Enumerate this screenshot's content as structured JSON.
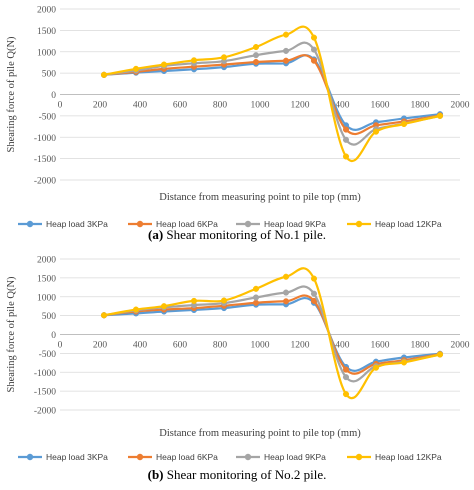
{
  "chart_data": [
    {
      "type": "line",
      "caption_letter": "(a)",
      "caption_text": " Shear monitoring of No.1 pile.",
      "xlabel": "Distance from measuring point to pile top  (mm)",
      "ylabel": "Shearing force of pile Q(N)",
      "xlim": [
        0,
        2000
      ],
      "ylim": [
        -2000,
        2000
      ],
      "xticks": [
        "0",
        "200",
        "400",
        "600",
        "800",
        "1000",
        "1200",
        "1400",
        "1600",
        "1800",
        "2000"
      ],
      "yticks": [
        "-2000",
        "-1500",
        "-1000",
        "-500",
        "0",
        "500",
        "1000",
        "1500",
        "2000"
      ],
      "x": [
        220,
        380,
        520,
        670,
        820,
        980,
        1130,
        1270,
        1430,
        1580,
        1720,
        1900
      ],
      "legend_position": "bottom",
      "series": [
        {
          "name": "Heap load 3KPa",
          "color": "#5b9bd5",
          "values": [
            460,
            510,
            550,
            590,
            640,
            720,
            730,
            820,
            -720,
            -650,
            -560,
            -460
          ]
        },
        {
          "name": "Heap load 6KPa",
          "color": "#ed7d31",
          "values": [
            460,
            530,
            600,
            650,
            700,
            760,
            790,
            790,
            -820,
            -720,
            -630,
            -490
          ]
        },
        {
          "name": "Heap load 9KPa",
          "color": "#a5a5a5",
          "values": [
            460,
            560,
            670,
            730,
            780,
            920,
            1020,
            1050,
            -1060,
            -810,
            -680,
            -500
          ]
        },
        {
          "name": "Heap load 12KPa",
          "color": "#ffc000",
          "values": [
            460,
            600,
            700,
            800,
            870,
            1110,
            1400,
            1330,
            -1450,
            -870,
            -690,
            -500
          ]
        }
      ]
    },
    {
      "type": "line",
      "caption_letter": "(b)",
      "caption_text": " Shear monitoring of No.2 pile.",
      "xlabel": "Distance from measuring point to pile top  (mm)",
      "ylabel": "Shearing force of pile Q(N)",
      "xlim": [
        0,
        2000
      ],
      "ylim": [
        -2000,
        2000
      ],
      "xticks": [
        "0",
        "200",
        "400",
        "600",
        "800",
        "1000",
        "1200",
        "1400",
        "1600",
        "1800",
        "2000"
      ],
      "yticks": [
        "-2000",
        "-1500",
        "-1000",
        "-500",
        "0",
        "500",
        "1000",
        "1500",
        "2000"
      ],
      "x": [
        220,
        380,
        520,
        670,
        820,
        980,
        1130,
        1270,
        1430,
        1580,
        1720,
        1900
      ],
      "legend_position": "bottom",
      "series": [
        {
          "name": "Heap load 3KPa",
          "color": "#5b9bd5",
          "values": [
            510,
            560,
            610,
            650,
            700,
            790,
            800,
            840,
            -860,
            -720,
            -610,
            -510
          ]
        },
        {
          "name": "Heap load 6KPa",
          "color": "#ed7d31",
          "values": [
            510,
            610,
            660,
            700,
            760,
            840,
            880,
            890,
            -930,
            -780,
            -680,
            -520
          ]
        },
        {
          "name": "Heap load 9KPa",
          "color": "#a5a5a5",
          "values": [
            510,
            640,
            720,
            780,
            830,
            980,
            1110,
            1080,
            -1130,
            -840,
            -720,
            -530
          ]
        },
        {
          "name": "Heap load 12KPa",
          "color": "#ffc000",
          "values": [
            510,
            660,
            750,
            890,
            900,
            1210,
            1530,
            1480,
            -1580,
            -880,
            -740,
            -530
          ]
        }
      ]
    }
  ]
}
